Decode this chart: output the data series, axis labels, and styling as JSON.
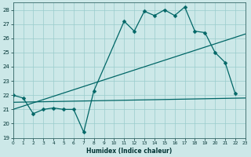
{
  "xlabel": "Humidex (Indice chaleur)",
  "xlim": [
    0,
    23
  ],
  "ylim": [
    19,
    28.5
  ],
  "yticks": [
    19,
    20,
    21,
    22,
    23,
    24,
    25,
    26,
    27,
    28
  ],
  "xticks": [
    0,
    1,
    2,
    3,
    4,
    5,
    6,
    7,
    8,
    9,
    10,
    11,
    12,
    13,
    14,
    15,
    16,
    17,
    18,
    19,
    20,
    21,
    22,
    23
  ],
  "xtick_labels": [
    "0",
    "1",
    "2",
    "3",
    "4",
    "5",
    "6",
    "7",
    "8",
    "9",
    "10",
    "11",
    "12",
    "13",
    "14",
    "15",
    "16",
    "17",
    "18",
    "19",
    "20",
    "21",
    "22",
    "23"
  ],
  "background_color": "#cce8e8",
  "grid_color": "#99cccc",
  "line_color": "#006666",
  "series": [
    {
      "x": [
        0,
        1,
        2,
        3,
        4,
        5,
        6,
        7,
        8,
        11,
        12,
        13,
        14,
        15,
        16,
        17,
        18,
        19,
        20,
        21,
        22
      ],
      "y": [
        22,
        21.8,
        20.7,
        21.0,
        21.1,
        21.0,
        21.0,
        19.4,
        22.3,
        27.2,
        26.5,
        27.9,
        27.6,
        28.0,
        27.6,
        28.2,
        26.5,
        26.4,
        25.0,
        24.3,
        22.1
      ],
      "marker": "D",
      "marker_size": 2.5,
      "linestyle": "-",
      "linewidth": 0.9
    },
    {
      "x": [
        0,
        23
      ],
      "y": [
        21.5,
        21.8
      ],
      "marker": null,
      "marker_size": 0,
      "linestyle": "-",
      "linewidth": 0.9
    },
    {
      "x": [
        0,
        23
      ],
      "y": [
        21.0,
        26.3
      ],
      "marker": null,
      "marker_size": 0,
      "linestyle": "-",
      "linewidth": 0.9
    }
  ]
}
